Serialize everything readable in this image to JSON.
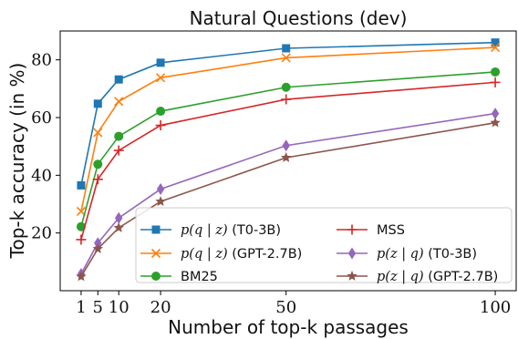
{
  "chart_data": {
    "type": "line",
    "title": "Natural Questions (dev)",
    "xlabel": "Number of top-k passages",
    "ylabel": "Top-k accuracy (in %)",
    "x": [
      1,
      5,
      10,
      20,
      50,
      100
    ],
    "xticks": [
      1,
      5,
      10,
      20,
      50,
      100
    ],
    "yticks": [
      20,
      40,
      60,
      80
    ],
    "xlim": [
      -4,
      105
    ],
    "ylim": [
      0,
      90
    ],
    "grid": false,
    "legend_position": "lower-right",
    "series": [
      {
        "name_math": "p(q | z)",
        "name_suffix": "(T0-3B)",
        "color": "#1f77b4",
        "marker": "square",
        "values": [
          36.5,
          64.8,
          73.2,
          79.0,
          84.0,
          86.0
        ]
      },
      {
        "name_math": "p(q | z)",
        "name_suffix": "(GPT-2.7B)",
        "color": "#ff7f0e",
        "marker": "x",
        "values": [
          27.5,
          54.8,
          65.6,
          73.8,
          80.7,
          84.3
        ]
      },
      {
        "name_math": "",
        "name_suffix": "BM25",
        "color": "#2ca02c",
        "marker": "circle",
        "values": [
          22.2,
          43.8,
          53.5,
          62.2,
          70.5,
          75.8
        ]
      },
      {
        "name_math": "",
        "name_suffix": "MSS",
        "color": "#d62728",
        "marker": "plus",
        "values": [
          17.7,
          38.6,
          48.6,
          57.3,
          66.3,
          72.2
        ]
      },
      {
        "name_math": "p(z | q)",
        "name_suffix": "(T0-3B)",
        "color": "#9467bd",
        "marker": "diamond",
        "values": [
          5.8,
          16.5,
          25.2,
          35.2,
          50.3,
          61.4
        ]
      },
      {
        "name_math": "p(z | q)",
        "name_suffix": "(GPT-2.7B)",
        "color": "#8c564b",
        "marker": "star",
        "values": [
          4.9,
          14.5,
          21.8,
          30.9,
          46.1,
          58.2
        ]
      }
    ]
  }
}
